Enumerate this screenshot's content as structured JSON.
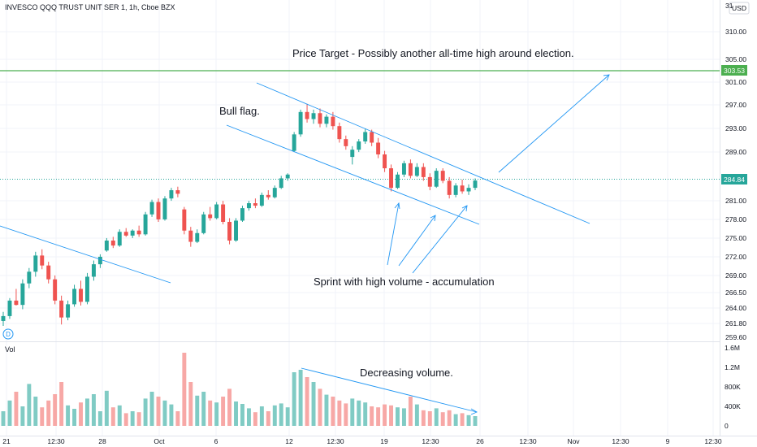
{
  "header": {
    "symbol_title": "INVESCO QQQ TRUST UNIT SER 1, 1h, Cboe BZX",
    "currency": "USD"
  },
  "colors": {
    "up": "#26a69a",
    "down": "#ef5350",
    "up_vol": "#80cbc4",
    "down_vol": "#f7a8a6",
    "trendline": "#2196f3",
    "target_line": "#4caf50",
    "target_label_bg": "#4caf50",
    "last_price_bg": "#26a69a",
    "grid": "#f0f3fa"
  },
  "icons": {
    "dividend_marker": "dividend-d-icon"
  },
  "chart_data": {
    "type": "candlestick",
    "y_axis_ticks": [
      "314.00",
      "310.00",
      "305.00",
      "301.00",
      "297.00",
      "293.00",
      "289.00",
      "285.00",
      "281.00",
      "278.00",
      "275.00",
      "272.00",
      "269.00",
      "266.50",
      "264.00",
      "261.80",
      "259.60"
    ],
    "ylim": [
      259.6,
      314
    ],
    "x_axis_ticks": [
      "21",
      "12:30",
      "28",
      "Oct",
      "6",
      "12",
      "12:30",
      "19",
      "12:30",
      "26",
      "12:30",
      "Nov",
      "12:30",
      "9",
      "12:30"
    ],
    "last_price": "284.84",
    "target_price": "303.53",
    "candles": [
      {
        "o": 262.5,
        "h": 263.8,
        "l": 261.8,
        "c": 263.2
      },
      {
        "o": 263.2,
        "h": 266.0,
        "l": 262.8,
        "c": 265.6
      },
      {
        "o": 265.6,
        "h": 267.4,
        "l": 264.8,
        "c": 264.9
      },
      {
        "o": 264.9,
        "h": 268.8,
        "l": 264.2,
        "c": 268.2
      },
      {
        "o": 268.2,
        "h": 270.6,
        "l": 267.5,
        "c": 270.0
      },
      {
        "o": 270.0,
        "h": 273.2,
        "l": 269.2,
        "c": 272.6
      },
      {
        "o": 272.6,
        "h": 273.6,
        "l": 270.4,
        "c": 271.0
      },
      {
        "o": 271.0,
        "h": 271.6,
        "l": 268.2,
        "c": 268.8
      },
      {
        "o": 268.8,
        "h": 269.4,
        "l": 265.0,
        "c": 265.6
      },
      {
        "o": 265.6,
        "h": 266.4,
        "l": 262.0,
        "c": 263.0
      },
      {
        "o": 263.0,
        "h": 265.6,
        "l": 262.6,
        "c": 265.0
      },
      {
        "o": 265.0,
        "h": 268.0,
        "l": 264.6,
        "c": 267.4
      },
      {
        "o": 267.4,
        "h": 268.6,
        "l": 264.8,
        "c": 265.4
      },
      {
        "o": 265.4,
        "h": 269.8,
        "l": 265.0,
        "c": 269.2
      },
      {
        "o": 269.2,
        "h": 271.8,
        "l": 268.6,
        "c": 271.2
      },
      {
        "o": 271.2,
        "h": 272.8,
        "l": 270.6,
        "c": 272.4
      },
      {
        "o": 273.4,
        "h": 275.4,
        "l": 273.2,
        "c": 275.0
      },
      {
        "o": 275.0,
        "h": 275.6,
        "l": 273.8,
        "c": 274.2
      },
      {
        "o": 274.2,
        "h": 276.8,
        "l": 274.0,
        "c": 276.4
      },
      {
        "o": 276.4,
        "h": 277.0,
        "l": 275.6,
        "c": 275.8
      },
      {
        "o": 275.8,
        "h": 276.8,
        "l": 275.4,
        "c": 276.6
      },
      {
        "o": 276.6,
        "h": 277.4,
        "l": 275.6,
        "c": 276.0
      },
      {
        "o": 276.0,
        "h": 279.6,
        "l": 275.8,
        "c": 279.2
      },
      {
        "o": 279.2,
        "h": 281.6,
        "l": 278.8,
        "c": 281.2
      },
      {
        "o": 281.2,
        "h": 281.8,
        "l": 278.0,
        "c": 278.4
      },
      {
        "o": 278.4,
        "h": 282.2,
        "l": 278.2,
        "c": 281.8
      },
      {
        "o": 281.8,
        "h": 283.6,
        "l": 281.4,
        "c": 283.2
      },
      {
        "o": 283.2,
        "h": 283.8,
        "l": 282.0,
        "c": 282.6
      },
      {
        "o": 280.0,
        "h": 280.4,
        "l": 276.0,
        "c": 276.6
      },
      {
        "o": 276.6,
        "h": 277.2,
        "l": 274.0,
        "c": 274.8
      },
      {
        "o": 274.8,
        "h": 276.8,
        "l": 274.6,
        "c": 276.2
      },
      {
        "o": 276.2,
        "h": 279.6,
        "l": 276.0,
        "c": 279.2
      },
      {
        "o": 279.2,
        "h": 280.4,
        "l": 278.2,
        "c": 278.6
      },
      {
        "o": 278.6,
        "h": 281.2,
        "l": 278.4,
        "c": 280.8
      },
      {
        "o": 280.8,
        "h": 281.4,
        "l": 277.6,
        "c": 278.0
      },
      {
        "o": 278.0,
        "h": 278.6,
        "l": 274.4,
        "c": 275.0
      },
      {
        "o": 275.0,
        "h": 278.6,
        "l": 274.8,
        "c": 278.2
      },
      {
        "o": 278.2,
        "h": 280.6,
        "l": 278.0,
        "c": 280.2
      },
      {
        "o": 280.2,
        "h": 281.4,
        "l": 279.8,
        "c": 281.0
      },
      {
        "o": 281.0,
        "h": 281.8,
        "l": 280.2,
        "c": 280.6
      },
      {
        "o": 280.6,
        "h": 282.8,
        "l": 280.4,
        "c": 282.4
      },
      {
        "o": 282.4,
        "h": 283.2,
        "l": 281.6,
        "c": 282.0
      },
      {
        "o": 282.0,
        "h": 284.0,
        "l": 281.8,
        "c": 283.6
      },
      {
        "o": 283.6,
        "h": 285.6,
        "l": 283.4,
        "c": 285.2
      },
      {
        "o": 285.2,
        "h": 286.0,
        "l": 284.8,
        "c": 285.8
      },
      {
        "o": 289.6,
        "h": 292.8,
        "l": 289.4,
        "c": 292.4
      },
      {
        "o": 292.4,
        "h": 296.6,
        "l": 292.0,
        "c": 296.2
      },
      {
        "o": 296.2,
        "h": 297.6,
        "l": 294.4,
        "c": 295.0
      },
      {
        "o": 295.0,
        "h": 296.6,
        "l": 294.2,
        "c": 296.0
      },
      {
        "o": 296.0,
        "h": 296.8,
        "l": 293.6,
        "c": 294.2
      },
      {
        "o": 294.2,
        "h": 295.8,
        "l": 293.6,
        "c": 295.4
      },
      {
        "o": 295.4,
        "h": 296.2,
        "l": 293.2,
        "c": 293.8
      },
      {
        "o": 293.8,
        "h": 294.4,
        "l": 291.0,
        "c": 291.6
      },
      {
        "o": 291.6,
        "h": 292.2,
        "l": 289.8,
        "c": 290.4
      },
      {
        "o": 288.6,
        "h": 290.4,
        "l": 287.4,
        "c": 289.8
      },
      {
        "o": 289.8,
        "h": 291.6,
        "l": 289.4,
        "c": 291.2
      },
      {
        "o": 291.2,
        "h": 293.4,
        "l": 290.8,
        "c": 292.8
      },
      {
        "o": 292.8,
        "h": 293.2,
        "l": 290.4,
        "c": 291.0
      },
      {
        "o": 291.0,
        "h": 291.8,
        "l": 288.4,
        "c": 289.0
      },
      {
        "o": 289.0,
        "h": 289.6,
        "l": 286.2,
        "c": 286.8
      },
      {
        "o": 286.8,
        "h": 287.4,
        "l": 283.0,
        "c": 283.6
      },
      {
        "o": 283.6,
        "h": 286.2,
        "l": 283.4,
        "c": 285.8
      },
      {
        "o": 285.8,
        "h": 288.0,
        "l": 285.4,
        "c": 287.6
      },
      {
        "o": 287.6,
        "h": 288.2,
        "l": 285.2,
        "c": 285.6
      },
      {
        "o": 285.6,
        "h": 287.6,
        "l": 285.4,
        "c": 287.0
      },
      {
        "o": 287.0,
        "h": 287.6,
        "l": 284.8,
        "c": 285.4
      },
      {
        "o": 285.4,
        "h": 286.0,
        "l": 283.2,
        "c": 283.8
      },
      {
        "o": 283.8,
        "h": 286.8,
        "l": 283.6,
        "c": 286.4
      },
      {
        "o": 286.4,
        "h": 286.8,
        "l": 284.4,
        "c": 284.8
      },
      {
        "o": 284.8,
        "h": 285.4,
        "l": 281.8,
        "c": 282.4
      },
      {
        "o": 282.4,
        "h": 284.4,
        "l": 282.0,
        "c": 284.0
      },
      {
        "o": 284.0,
        "h": 285.0,
        "l": 282.6,
        "c": 283.0
      },
      {
        "o": 283.0,
        "h": 284.2,
        "l": 282.4,
        "c": 283.6
      },
      {
        "o": 283.6,
        "h": 285.2,
        "l": 283.2,
        "c": 284.84
      }
    ],
    "volume_axis_ticks": [
      "1.6M",
      "1.2M",
      "800K",
      "400K",
      "0"
    ],
    "volume_max": 1600000,
    "volume": [
      {
        "v": 300000,
        "d": "up"
      },
      {
        "v": 520000,
        "d": "up"
      },
      {
        "v": 700000,
        "d": "down"
      },
      {
        "v": 400000,
        "d": "up"
      },
      {
        "v": 860000,
        "d": "up"
      },
      {
        "v": 600000,
        "d": "up"
      },
      {
        "v": 380000,
        "d": "down"
      },
      {
        "v": 520000,
        "d": "down"
      },
      {
        "v": 650000,
        "d": "down"
      },
      {
        "v": 900000,
        "d": "down"
      },
      {
        "v": 420000,
        "d": "up"
      },
      {
        "v": 350000,
        "d": "up"
      },
      {
        "v": 480000,
        "d": "down"
      },
      {
        "v": 560000,
        "d": "up"
      },
      {
        "v": 650000,
        "d": "up"
      },
      {
        "v": 300000,
        "d": "up"
      },
      {
        "v": 720000,
        "d": "up"
      },
      {
        "v": 380000,
        "d": "down"
      },
      {
        "v": 420000,
        "d": "up"
      },
      {
        "v": 260000,
        "d": "down"
      },
      {
        "v": 300000,
        "d": "up"
      },
      {
        "v": 280000,
        "d": "down"
      },
      {
        "v": 560000,
        "d": "up"
      },
      {
        "v": 700000,
        "d": "up"
      },
      {
        "v": 600000,
        "d": "down"
      },
      {
        "v": 520000,
        "d": "up"
      },
      {
        "v": 440000,
        "d": "up"
      },
      {
        "v": 300000,
        "d": "down"
      },
      {
        "v": 1500000,
        "d": "down"
      },
      {
        "v": 900000,
        "d": "down"
      },
      {
        "v": 620000,
        "d": "up"
      },
      {
        "v": 700000,
        "d": "up"
      },
      {
        "v": 520000,
        "d": "down"
      },
      {
        "v": 480000,
        "d": "up"
      },
      {
        "v": 600000,
        "d": "down"
      },
      {
        "v": 760000,
        "d": "down"
      },
      {
        "v": 500000,
        "d": "up"
      },
      {
        "v": 450000,
        "d": "up"
      },
      {
        "v": 360000,
        "d": "up"
      },
      {
        "v": 280000,
        "d": "down"
      },
      {
        "v": 400000,
        "d": "up"
      },
      {
        "v": 300000,
        "d": "down"
      },
      {
        "v": 420000,
        "d": "up"
      },
      {
        "v": 460000,
        "d": "up"
      },
      {
        "v": 380000,
        "d": "up"
      },
      {
        "v": 1100000,
        "d": "up"
      },
      {
        "v": 1150000,
        "d": "up"
      },
      {
        "v": 1000000,
        "d": "down"
      },
      {
        "v": 900000,
        "d": "up"
      },
      {
        "v": 760000,
        "d": "down"
      },
      {
        "v": 640000,
        "d": "up"
      },
      {
        "v": 600000,
        "d": "down"
      },
      {
        "v": 520000,
        "d": "down"
      },
      {
        "v": 460000,
        "d": "down"
      },
      {
        "v": 560000,
        "d": "up"
      },
      {
        "v": 520000,
        "d": "up"
      },
      {
        "v": 480000,
        "d": "up"
      },
      {
        "v": 400000,
        "d": "down"
      },
      {
        "v": 380000,
        "d": "down"
      },
      {
        "v": 440000,
        "d": "down"
      },
      {
        "v": 420000,
        "d": "down"
      },
      {
        "v": 380000,
        "d": "up"
      },
      {
        "v": 360000,
        "d": "up"
      },
      {
        "v": 600000,
        "d": "down"
      },
      {
        "v": 440000,
        "d": "up"
      },
      {
        "v": 320000,
        "d": "down"
      },
      {
        "v": 300000,
        "d": "down"
      },
      {
        "v": 360000,
        "d": "up"
      },
      {
        "v": 280000,
        "d": "down"
      },
      {
        "v": 320000,
        "d": "down"
      },
      {
        "v": 240000,
        "d": "up"
      },
      {
        "v": 260000,
        "d": "down"
      },
      {
        "v": 220000,
        "d": "up"
      },
      {
        "v": 200000,
        "d": "up"
      }
    ],
    "annotations": {
      "price_target": "Price Target - Possibly another all-time high around election.",
      "bull_flag": "Bull flag.",
      "sprint": "Sprint with high volume - accumulation",
      "decreasing_volume": "Decreasing volume.",
      "volume_pane": "Vol"
    }
  }
}
